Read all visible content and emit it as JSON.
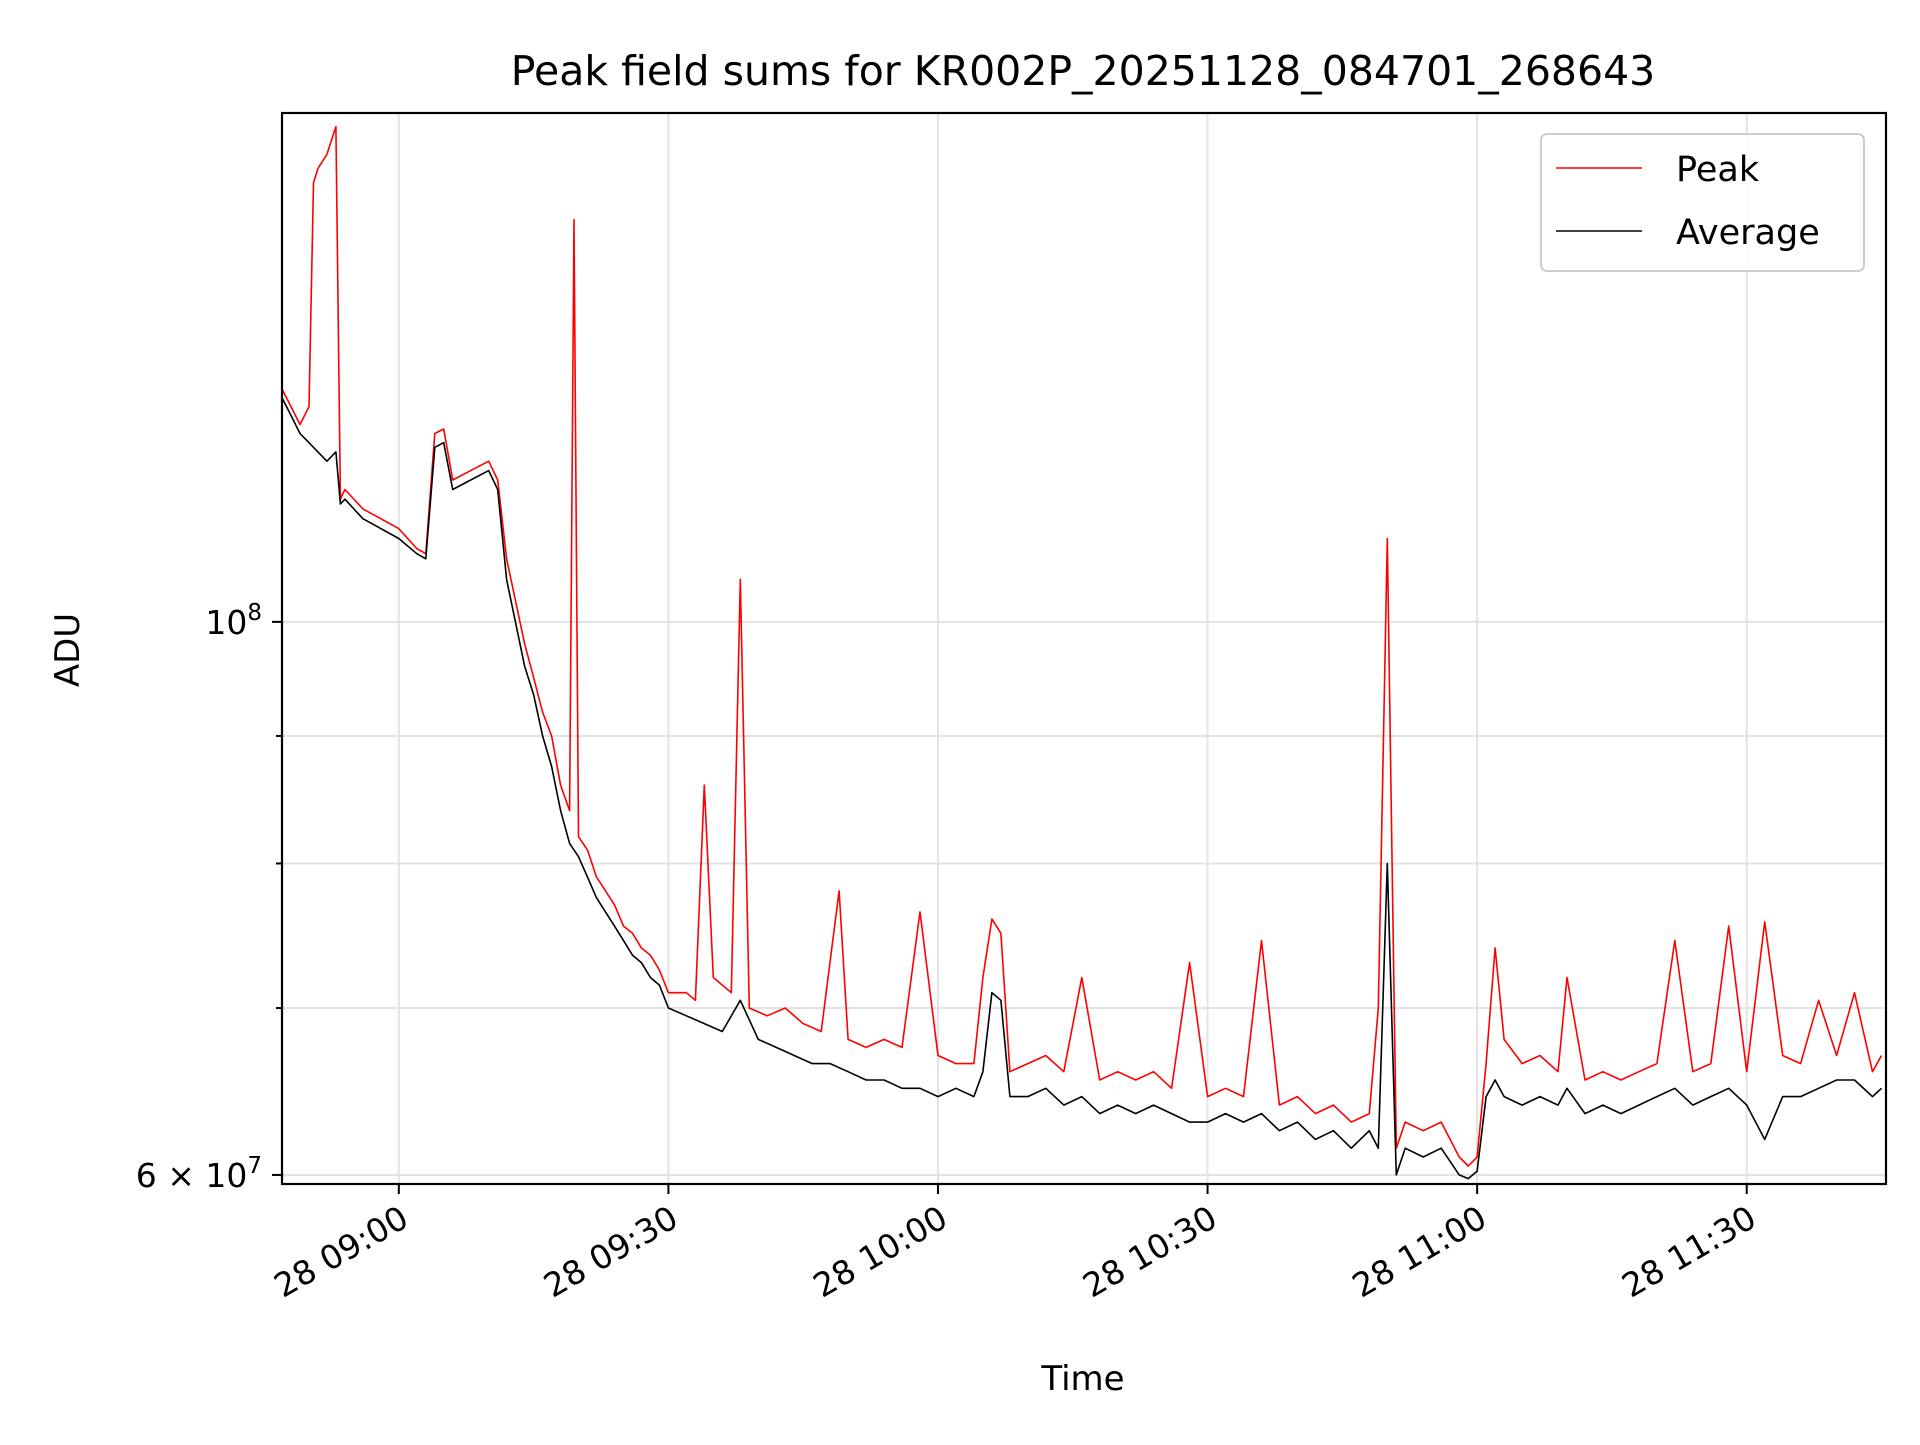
{
  "chart_data": {
    "type": "line",
    "title": "Peak field sums for KR002P_20251128_084701_268643",
    "xlabel": "Time",
    "ylabel": "ADU",
    "x_axis": "time",
    "xlim": [
      "2025-11-28 08:47:00",
      "2025-11-28 11:45:30"
    ],
    "ylim": [
      59500000,
      160000000
    ],
    "y_scale": "log",
    "grid": true,
    "legend_position": "top-right",
    "x_ticks": [
      {
        "value": "2025-11-28 09:00",
        "label": "28 09:00"
      },
      {
        "value": "2025-11-28 09:30",
        "label": "28 09:30"
      },
      {
        "value": "2025-11-28 10:00",
        "label": "28 10:00"
      },
      {
        "value": "2025-11-28 10:30",
        "label": "28 10:30"
      },
      {
        "value": "2025-11-28 11:00",
        "label": "28 11:00"
      },
      {
        "value": "2025-11-28 11:30",
        "label": "28 11:30"
      }
    ],
    "y_major_ticks": [
      {
        "value": 100000000,
        "base": "10",
        "exp": "8"
      },
      {
        "value": 60000000,
        "base": "6 × 10",
        "exp": "7"
      }
    ],
    "y_minor_grid": [
      70000000,
      80000000,
      90000000
    ],
    "series": [
      {
        "name": "Peak",
        "color": "#ff0000",
        "points": [
          [
            "08:47",
            124000000
          ],
          [
            "08:48",
            122000000
          ],
          [
            "08:49",
            120000000
          ],
          [
            "08:50",
            122000000
          ],
          [
            "08:50:30",
            150000000
          ],
          [
            "08:51",
            152000000
          ],
          [
            "08:52",
            154000000
          ],
          [
            "08:53",
            158000000
          ],
          [
            "08:53:30",
            112000000
          ],
          [
            "08:54",
            113000000
          ],
          [
            "08:56",
            111000000
          ],
          [
            "08:58",
            110000000
          ],
          [
            "09:00",
            109000000
          ],
          [
            "09:02",
            107000000
          ],
          [
            "09:03",
            106500000
          ],
          [
            "09:04",
            119000000
          ],
          [
            "09:05",
            119500000
          ],
          [
            "09:06",
            114000000
          ],
          [
            "09:08",
            115000000
          ],
          [
            "09:10",
            116000000
          ],
          [
            "09:11",
            114000000
          ],
          [
            "09:12",
            106000000
          ],
          [
            "09:14",
            98000000
          ],
          [
            "09:15",
            95000000
          ],
          [
            "09:16",
            92000000
          ],
          [
            "09:17",
            90000000
          ],
          [
            "09:18",
            86000000
          ],
          [
            "09:19",
            84000000
          ],
          [
            "09:19:30",
            145000000
          ],
          [
            "09:20",
            82000000
          ],
          [
            "09:21",
            81000000
          ],
          [
            "09:22",
            79000000
          ],
          [
            "09:23",
            78000000
          ],
          [
            "09:24",
            77000000
          ],
          [
            "09:25",
            75500000
          ],
          [
            "09:26",
            75000000
          ],
          [
            "09:27",
            74000000
          ],
          [
            "09:28",
            73500000
          ],
          [
            "09:29",
            72500000
          ],
          [
            "09:30",
            71000000
          ],
          [
            "09:32",
            71000000
          ],
          [
            "09:33",
            70500000
          ],
          [
            "09:34",
            86000000
          ],
          [
            "09:35",
            72000000
          ],
          [
            "09:37",
            71000000
          ],
          [
            "09:38",
            104000000
          ],
          [
            "09:39",
            70000000
          ],
          [
            "09:41",
            69500000
          ],
          [
            "09:43",
            70000000
          ],
          [
            "09:45",
            69000000
          ],
          [
            "09:47",
            68500000
          ],
          [
            "09:49",
            78000000
          ],
          [
            "09:50",
            68000000
          ],
          [
            "09:52",
            67500000
          ],
          [
            "09:54",
            68000000
          ],
          [
            "09:56",
            67500000
          ],
          [
            "09:58",
            76500000
          ],
          [
            "10:00",
            67000000
          ],
          [
            "10:02",
            66500000
          ],
          [
            "10:04",
            66500000
          ],
          [
            "10:05",
            72000000
          ],
          [
            "10:06",
            76000000
          ],
          [
            "10:07",
            75000000
          ],
          [
            "10:08",
            66000000
          ],
          [
            "10:10",
            66500000
          ],
          [
            "10:12",
            67000000
          ],
          [
            "10:14",
            66000000
          ],
          [
            "10:16",
            72000000
          ],
          [
            "10:18",
            65500000
          ],
          [
            "10:20",
            66000000
          ],
          [
            "10:22",
            65500000
          ],
          [
            "10:24",
            66000000
          ],
          [
            "10:26",
            65000000
          ],
          [
            "10:28",
            73000000
          ],
          [
            "10:30",
            64500000
          ],
          [
            "10:32",
            65000000
          ],
          [
            "10:34",
            64500000
          ],
          [
            "10:36",
            74500000
          ],
          [
            "10:38",
            64000000
          ],
          [
            "10:40",
            64500000
          ],
          [
            "10:42",
            63500000
          ],
          [
            "10:44",
            64000000
          ],
          [
            "10:46",
            63000000
          ],
          [
            "10:48",
            63500000
          ],
          [
            "10:49",
            70000000
          ],
          [
            "10:50",
            108000000
          ],
          [
            "10:51",
            61500000
          ],
          [
            "10:52",
            63000000
          ],
          [
            "10:54",
            62500000
          ],
          [
            "10:56",
            63000000
          ],
          [
            "10:58",
            61000000
          ],
          [
            "10:59",
            60500000
          ],
          [
            "11:00",
            61000000
          ],
          [
            "11:01",
            66500000
          ],
          [
            "11:02",
            74000000
          ],
          [
            "11:03",
            68000000
          ],
          [
            "11:05",
            66500000
          ],
          [
            "11:07",
            67000000
          ],
          [
            "11:09",
            66000000
          ],
          [
            "11:10",
            72000000
          ],
          [
            "11:12",
            65500000
          ],
          [
            "11:14",
            66000000
          ],
          [
            "11:16",
            65500000
          ],
          [
            "11:18",
            66000000
          ],
          [
            "11:20",
            66500000
          ],
          [
            "11:22",
            74500000
          ],
          [
            "11:24",
            66000000
          ],
          [
            "11:26",
            66500000
          ],
          [
            "11:28",
            75500000
          ],
          [
            "11:30",
            66000000
          ],
          [
            "11:32",
            75800000
          ],
          [
            "11:34",
            67000000
          ],
          [
            "11:36",
            66500000
          ],
          [
            "11:38",
            70500000
          ],
          [
            "11:40",
            67000000
          ],
          [
            "11:42",
            71000000
          ],
          [
            "11:44",
            66000000
          ],
          [
            "11:45",
            67000000
          ]
        ]
      },
      {
        "name": "Average",
        "color": "#000000",
        "points": [
          [
            "08:47",
            123000000
          ],
          [
            "08:48",
            121000000
          ],
          [
            "08:49",
            119000000
          ],
          [
            "08:50",
            118000000
          ],
          [
            "08:51",
            117000000
          ],
          [
            "08:52",
            116000000
          ],
          [
            "08:53",
            117000000
          ],
          [
            "08:53:30",
            111500000
          ],
          [
            "08:54",
            112000000
          ],
          [
            "08:56",
            110000000
          ],
          [
            "08:58",
            109000000
          ],
          [
            "09:00",
            108000000
          ],
          [
            "09:02",
            106500000
          ],
          [
            "09:03",
            106000000
          ],
          [
            "09:04",
            117500000
          ],
          [
            "09:05",
            118000000
          ],
          [
            "09:06",
            113000000
          ],
          [
            "09:08",
            114000000
          ],
          [
            "09:10",
            115000000
          ],
          [
            "09:11",
            113000000
          ],
          [
            "09:12",
            104000000
          ],
          [
            "09:14",
            96000000
          ],
          [
            "09:15",
            93500000
          ],
          [
            "09:16",
            90000000
          ],
          [
            "09:17",
            87500000
          ],
          [
            "09:18",
            84000000
          ],
          [
            "09:19",
            81500000
          ],
          [
            "09:20",
            80500000
          ],
          [
            "09:21",
            79000000
          ],
          [
            "09:22",
            77500000
          ],
          [
            "09:23",
            76500000
          ],
          [
            "09:24",
            75500000
          ],
          [
            "09:25",
            74500000
          ],
          [
            "09:26",
            73500000
          ],
          [
            "09:27",
            73000000
          ],
          [
            "09:28",
            72000000
          ],
          [
            "09:29",
            71500000
          ],
          [
            "09:30",
            70000000
          ],
          [
            "09:32",
            69500000
          ],
          [
            "09:34",
            69000000
          ],
          [
            "09:36",
            68500000
          ],
          [
            "09:38",
            70500000
          ],
          [
            "09:40",
            68000000
          ],
          [
            "09:42",
            67500000
          ],
          [
            "09:44",
            67000000
          ],
          [
            "09:46",
            66500000
          ],
          [
            "09:48",
            66500000
          ],
          [
            "09:50",
            66000000
          ],
          [
            "09:52",
            65500000
          ],
          [
            "09:54",
            65500000
          ],
          [
            "09:56",
            65000000
          ],
          [
            "09:58",
            65000000
          ],
          [
            "10:00",
            64500000
          ],
          [
            "10:02",
            65000000
          ],
          [
            "10:04",
            64500000
          ],
          [
            "10:05",
            66000000
          ],
          [
            "10:06",
            71000000
          ],
          [
            "10:07",
            70500000
          ],
          [
            "10:08",
            64500000
          ],
          [
            "10:10",
            64500000
          ],
          [
            "10:12",
            65000000
          ],
          [
            "10:14",
            64000000
          ],
          [
            "10:16",
            64500000
          ],
          [
            "10:18",
            63500000
          ],
          [
            "10:20",
            64000000
          ],
          [
            "10:22",
            63500000
          ],
          [
            "10:24",
            64000000
          ],
          [
            "10:26",
            63500000
          ],
          [
            "10:28",
            63000000
          ],
          [
            "10:30",
            63000000
          ],
          [
            "10:32",
            63500000
          ],
          [
            "10:34",
            63000000
          ],
          [
            "10:36",
            63500000
          ],
          [
            "10:38",
            62500000
          ],
          [
            "10:40",
            63000000
          ],
          [
            "10:42",
            62000000
          ],
          [
            "10:44",
            62500000
          ],
          [
            "10:46",
            61500000
          ],
          [
            "10:48",
            62500000
          ],
          [
            "10:49",
            61500000
          ],
          [
            "10:50",
            80000000
          ],
          [
            "10:51",
            60000000
          ],
          [
            "10:52",
            61500000
          ],
          [
            "10:54",
            61000000
          ],
          [
            "10:56",
            61500000
          ],
          [
            "10:58",
            60000000
          ],
          [
            "10:59",
            59800000
          ],
          [
            "11:00",
            60200000
          ],
          [
            "11:01",
            64500000
          ],
          [
            "11:02",
            65500000
          ],
          [
            "11:03",
            64500000
          ],
          [
            "11:05",
            64000000
          ],
          [
            "11:07",
            64500000
          ],
          [
            "11:09",
            64000000
          ],
          [
            "11:10",
            65000000
          ],
          [
            "11:12",
            63500000
          ],
          [
            "11:14",
            64000000
          ],
          [
            "11:16",
            63500000
          ],
          [
            "11:18",
            64000000
          ],
          [
            "11:20",
            64500000
          ],
          [
            "11:22",
            65000000
          ],
          [
            "11:24",
            64000000
          ],
          [
            "11:26",
            64500000
          ],
          [
            "11:28",
            65000000
          ],
          [
            "11:30",
            64000000
          ],
          [
            "11:32",
            62000000
          ],
          [
            "11:34",
            64500000
          ],
          [
            "11:36",
            64500000
          ],
          [
            "11:38",
            65000000
          ],
          [
            "11:40",
            65500000
          ],
          [
            "11:42",
            65500000
          ],
          [
            "11:44",
            64500000
          ],
          [
            "11:45",
            65000000
          ]
        ]
      }
    ]
  }
}
